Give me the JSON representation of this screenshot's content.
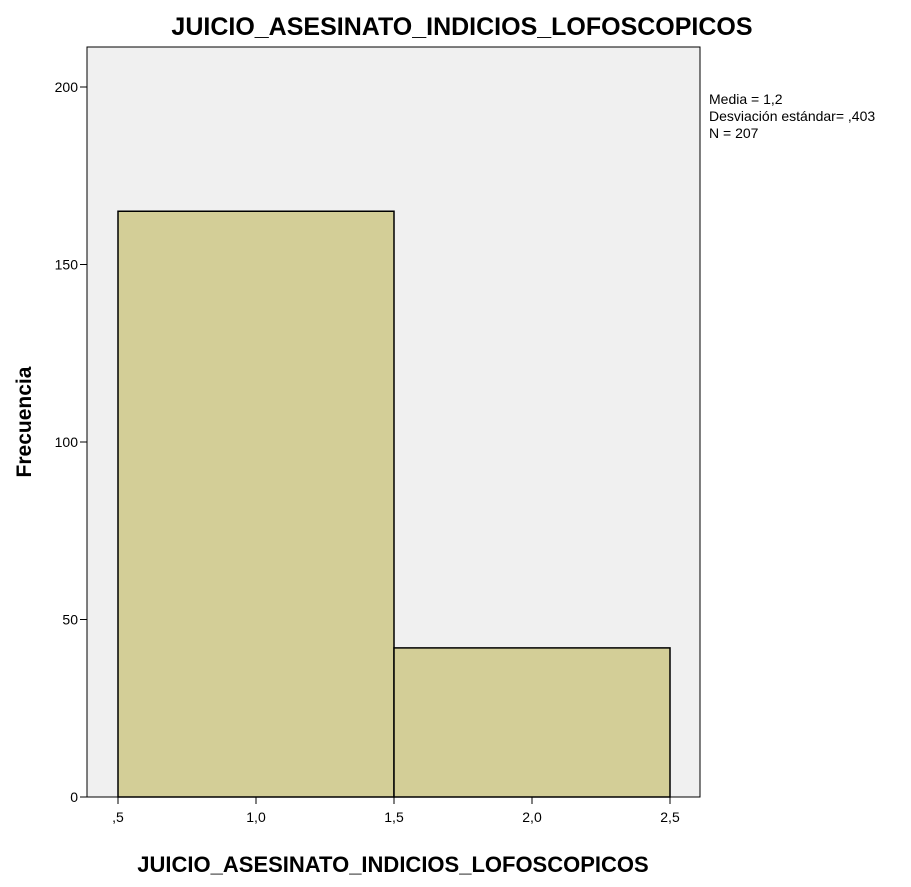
{
  "chart_data": {
    "type": "bar",
    "subtype": "histogram",
    "title": "JUICIO_ASESINATO_INDICIOS_LOFOSCOPICOS",
    "xlabel": "JUICIO_ASESINATO_INDICIOS_LOFOSCOPICOS",
    "ylabel": "Frecuencia",
    "xlim": [
      0.5,
      2.5
    ],
    "ylim": [
      0,
      200
    ],
    "x_ticks": [
      0.5,
      1.0,
      1.5,
      2.0,
      2.5
    ],
    "x_tick_labels": [
      ",5",
      "1,0",
      "1,5",
      "2,0",
      "2,5"
    ],
    "y_ticks": [
      0,
      50,
      100,
      150,
      200
    ],
    "y_tick_labels": [
      "0",
      "50",
      "100",
      "150",
      "200"
    ],
    "bins": [
      {
        "start": 0.5,
        "end": 1.5,
        "value": 165
      },
      {
        "start": 1.5,
        "end": 2.5,
        "value": 42
      }
    ],
    "grid": false,
    "plot_background": "#f0f0f0",
    "bar_color": "#d3ce97",
    "bar_edge_color": "#000000",
    "stats": {
      "mean_label": "Media = 1,2",
      "std_label": "Desviación estándar= ,403",
      "n_label": "N = 207"
    }
  }
}
